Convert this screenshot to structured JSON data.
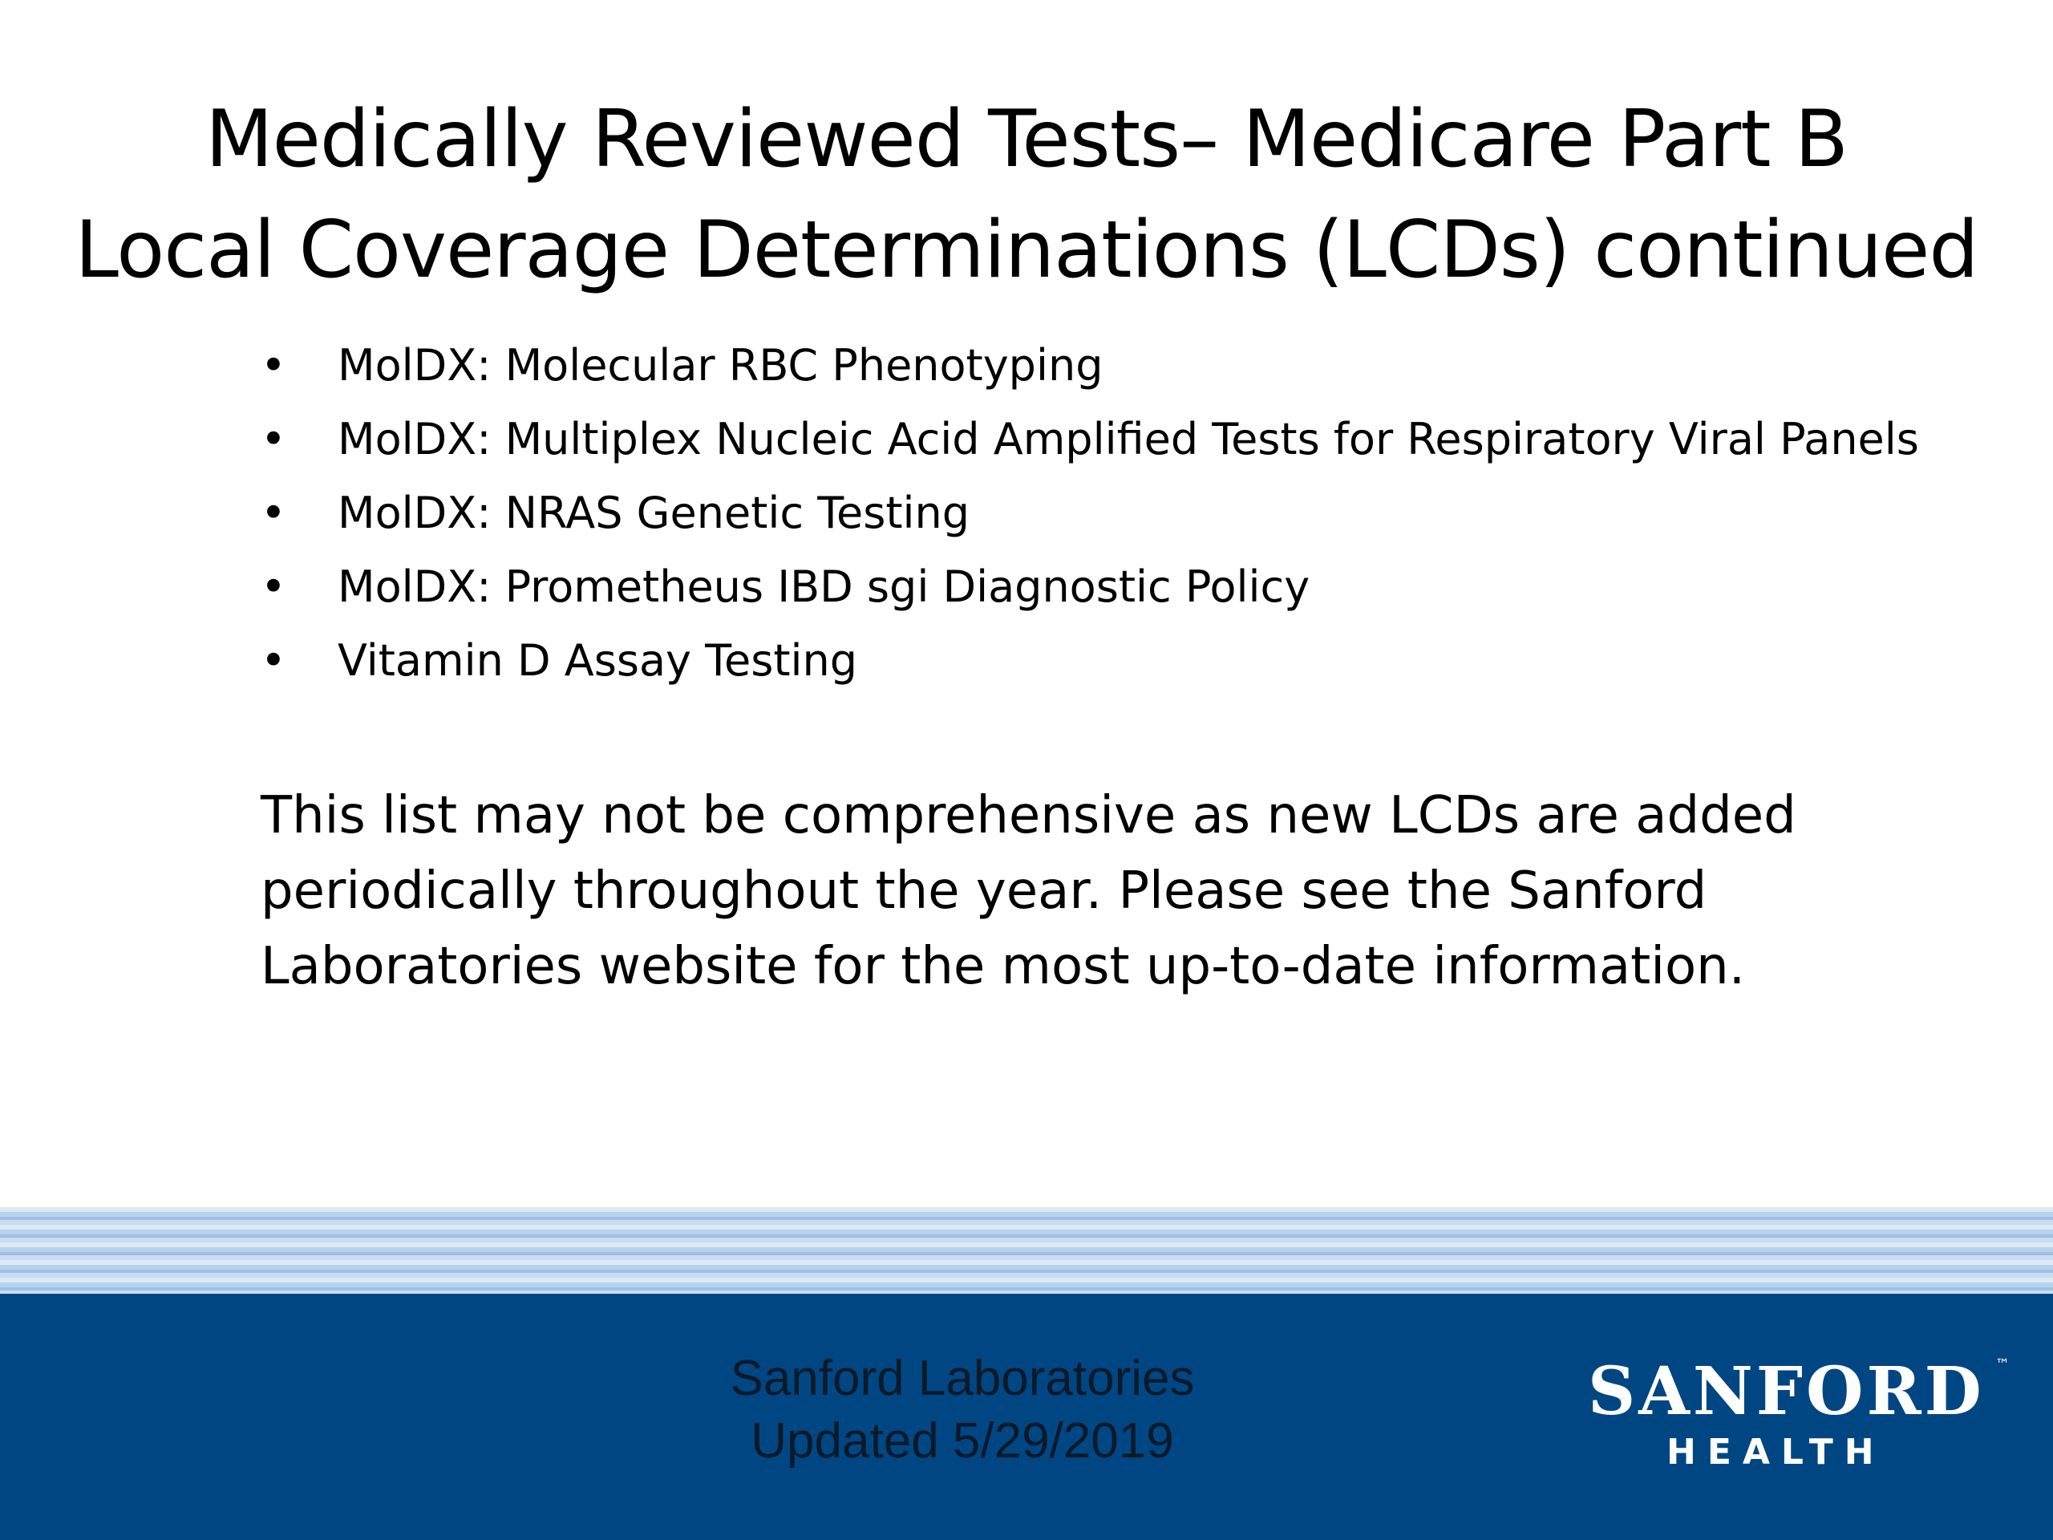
{
  "title": {
    "line1": "Medically Reviewed Tests– Medicare Part B",
    "line2": "Local Coverage Determinations (LCDs) continued"
  },
  "bullets": [
    "MolDX: Molecular RBC Phenotyping",
    "MolDX: Multiplex Nucleic Acid Amplified Tests for Respiratory Viral Panels",
    "MolDX: NRAS Genetic Testing",
    "MolDX: Prometheus IBD sgi Diagnostic Policy",
    "Vitamin D Assay Testing"
  ],
  "bullet_symbol": "•",
  "note": {
    "line1": "This list may not be comprehensive as new LCDs are added",
    "line2": "periodically throughout the year. Please see the Sanford",
    "line3": "Laboratories website for the most up-to-date information."
  },
  "footer": {
    "org": "Sanford Laboratories",
    "updated": "Updated 5/29/2019"
  },
  "logo": {
    "main": "SANFORD",
    "sub": "HEALTH",
    "tm": "™"
  },
  "colors": {
    "footer_bg": "#004683",
    "logo_text": "#ffffff"
  }
}
